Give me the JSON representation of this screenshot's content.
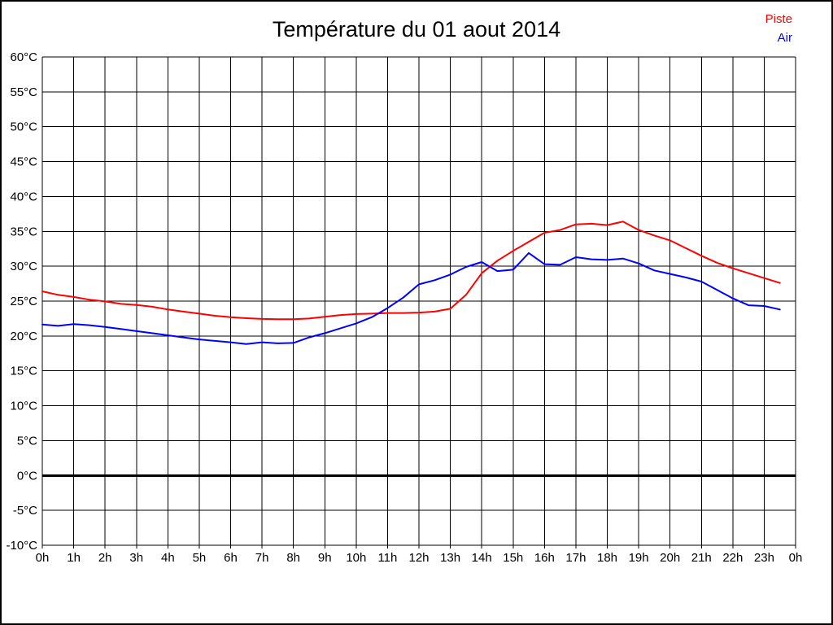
{
  "window": {
    "title": "Température du 01 aout 2014"
  },
  "legend": {
    "items": [
      {
        "label": "Piste",
        "color": "#ff0000"
      },
      {
        "label": "Air",
        "color": "#0000ff"
      }
    ]
  },
  "chart_data": {
    "type": "line",
    "title": "Température du 01 aout 2014",
    "xlabel": "",
    "ylabel": "",
    "xlim": [
      0,
      24
    ],
    "ylim": [
      -10,
      60
    ],
    "y_step": 5,
    "grid": true,
    "zero_line_value": 0,
    "legend_position": "top-right",
    "x_tick_labels": [
      "0h",
      "1h",
      "2h",
      "3h",
      "4h",
      "5h",
      "6h",
      "7h",
      "8h",
      "9h",
      "10h",
      "11h",
      "12h",
      "13h",
      "14h",
      "15h",
      "16h",
      "17h",
      "18h",
      "19h",
      "20h",
      "21h",
      "22h",
      "23h",
      "0h"
    ],
    "y_tick_labels": [
      "60°C",
      "55°C",
      "50°C",
      "45°C",
      "40°C",
      "35°C",
      "30°C",
      "25°C",
      "20°C",
      "15°C",
      "10°C",
      "5°C",
      "0°C",
      "-5°C",
      "-10°C"
    ],
    "y_tick_values": [
      60,
      55,
      50,
      45,
      40,
      35,
      30,
      25,
      20,
      15,
      10,
      5,
      0,
      -5,
      -10
    ],
    "x": [
      0,
      0.5,
      1,
      1.5,
      2,
      2.5,
      3,
      3.5,
      4,
      4.5,
      5,
      5.5,
      6,
      6.5,
      7,
      7.5,
      8,
      8.5,
      9,
      9.5,
      10,
      10.5,
      11,
      11.5,
      12,
      12.5,
      13,
      13.5,
      14,
      14.5,
      15,
      15.5,
      16,
      16.5,
      17,
      17.5,
      18,
      18.5,
      19,
      19.5,
      20,
      20.5,
      21,
      21.5,
      22,
      22.5,
      23,
      23.5
    ],
    "series": [
      {
        "name": "Piste",
        "color": "#ff0000",
        "values": [
          26.4,
          25.9,
          25.6,
          25.2,
          24.95,
          24.6,
          24.45,
          24.2,
          23.8,
          23.5,
          23.2,
          22.9,
          22.7,
          22.55,
          22.45,
          22.4,
          22.4,
          22.5,
          22.75,
          23.0,
          23.15,
          23.2,
          23.3,
          23.3,
          23.35,
          23.5,
          23.9,
          25.9,
          29.0,
          30.8,
          32.2,
          33.5,
          34.8,
          35.2,
          36.0,
          36.1,
          35.9,
          36.4,
          35.2,
          34.4,
          33.7,
          32.6,
          31.5,
          30.5,
          29.7,
          29.0,
          28.3,
          27.6
        ]
      },
      {
        "name": "Air",
        "color": "#0000ff",
        "values": [
          21.65,
          21.45,
          21.7,
          21.55,
          21.3,
          21.0,
          20.7,
          20.4,
          20.1,
          19.8,
          19.5,
          19.3,
          19.1,
          18.85,
          19.1,
          18.95,
          19.0,
          19.8,
          20.4,
          21.1,
          21.8,
          22.7,
          24.0,
          25.5,
          27.4,
          28.0,
          28.8,
          29.9,
          30.6,
          29.3,
          29.5,
          31.9,
          30.3,
          30.2,
          31.3,
          31.0,
          30.9,
          31.1,
          30.4,
          29.4,
          28.9,
          28.4,
          27.8,
          26.6,
          25.4,
          24.4,
          24.3,
          23.8
        ]
      }
    ]
  }
}
